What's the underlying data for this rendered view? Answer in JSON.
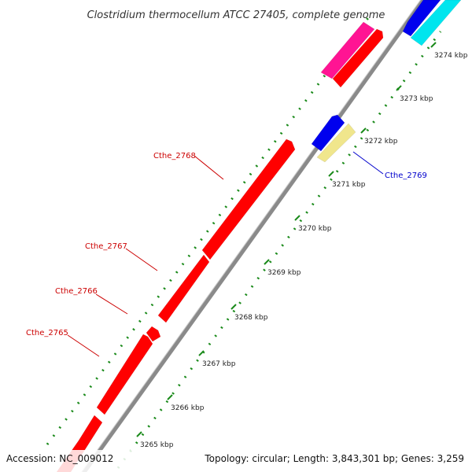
{
  "title": "Clostridium thermocellum ATCC 27405, complete genome",
  "footer": {
    "accession": "Accession: NC_009012",
    "summary": "Topology: circular; Length: 3,843,301 bp; Genes: 3,259"
  },
  "ticks": [
    {
      "label": "3265 kbp"
    },
    {
      "label": "3266 kbp"
    },
    {
      "label": "3267 kbp"
    },
    {
      "label": "3268 kbp"
    },
    {
      "label": "3269 kbp"
    },
    {
      "label": "3270 kbp"
    },
    {
      "label": "3271 kbp"
    },
    {
      "label": "3272 kbp"
    },
    {
      "label": "3273 kbp"
    },
    {
      "label": "3274 kbp"
    }
  ],
  "gene_labels": [
    {
      "name": "Cthe_2768",
      "color": "#cc0000"
    },
    {
      "name": "Cthe_2767",
      "color": "#cc0000"
    },
    {
      "name": "Cthe_2766",
      "color": "#cc0000"
    },
    {
      "name": "Cthe_2765",
      "color": "#cc0000"
    },
    {
      "name": "Cthe_2769",
      "color": "#0000cc"
    }
  ],
  "colors": {
    "backbone": "#8a8a8a",
    "forward_cds": "#ff0000",
    "reverse_cds": "#0000ee",
    "magenta_feature": "#ff1493",
    "cyan_feature": "#00e5ee",
    "khaki_feature": "#f0e68c",
    "dotted_track": "#1a8a1a"
  }
}
